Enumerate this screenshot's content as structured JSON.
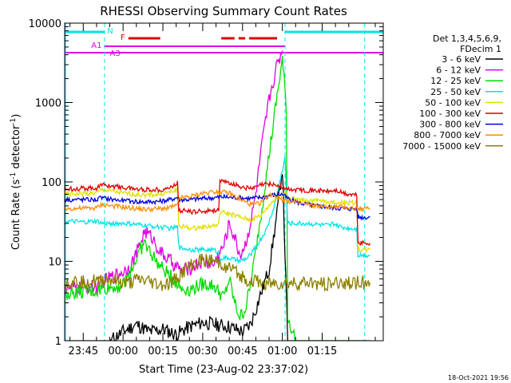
{
  "chart_data": {
    "type": "line",
    "title": "RHESSI Observing Summary Count Rates",
    "xlabel": "Start Time (23-Aug-02 23:37:02)",
    "ylabel": "Count Rate (s⁻¹ detector⁻¹)",
    "ylabel_parts": {
      "pre": "Count Rate (s",
      "sup1": "-1",
      "mid": " detector",
      "sup2": "-1",
      "post": ")"
    },
    "y_scale": "log",
    "ylim": [
      1,
      10000
    ],
    "xlim_minutes": [
      -22,
      98
    ],
    "x_tick_labels": [
      "23:45",
      "00:00",
      "00:15",
      "00:30",
      "00:45",
      "01:00",
      "01:15"
    ],
    "x_tick_minutes": [
      -15,
      0,
      15,
      30,
      45,
      60,
      75
    ],
    "y_tick_labels": [
      "1",
      "10",
      "100",
      "1000",
      "10000"
    ],
    "legend_title": [
      "Det 1,3,4,5,6,9,",
      "FDecim 1"
    ],
    "legend_placement": "right",
    "timestamp": "18-Oct-2021 19:56",
    "flags": {
      "N_label": "N",
      "A1_label": "A1",
      "A3_label": "A3",
      "F_label": "F",
      "night_color": "#00e5e5",
      "attenuator_color": "#e000e0",
      "flare_color": "#e00000",
      "night_intervals": [
        [
          -22,
          -7
        ],
        [
          61,
          98
        ]
      ],
      "attenuator_interval": [
        -22,
        98
      ],
      "flare_segments": [
        [
          2,
          14
        ],
        [
          37,
          42
        ],
        [
          43.5,
          46
        ],
        [
          47.5,
          58
        ]
      ],
      "night_markers_minutes": [
        -7,
        61,
        91
      ]
    },
    "series": [
      {
        "name": "3 - 6 keV",
        "color": "#000000",
        "x": [
          -22,
          -16,
          -14,
          -10,
          -5,
          0,
          5,
          10,
          15,
          20,
          25,
          30,
          35,
          40,
          45,
          48,
          50,
          52,
          55,
          58,
          60,
          62,
          65,
          70,
          75,
          80,
          85,
          90,
          93
        ],
        "y": [
          1,
          1,
          1,
          1,
          1,
          1.3,
          1.6,
          1.3,
          1.4,
          1.2,
          1.5,
          1.7,
          1.6,
          1.5,
          1.3,
          1.6,
          2.5,
          4,
          8,
          40,
          150,
          1,
          1,
          1,
          1,
          1,
          1,
          1,
          1
        ]
      },
      {
        "name": "6 - 12 keV",
        "color": "#e000e0",
        "x": [
          -22,
          -10,
          -8,
          0,
          3,
          6,
          8,
          11,
          14,
          18,
          22,
          26,
          30,
          34,
          38,
          40,
          42,
          44,
          46,
          48,
          50,
          52,
          55,
          58,
          60
        ],
        "y": [
          4.5,
          4.8,
          5.5,
          7.5,
          9,
          15,
          24,
          20,
          13,
          10,
          7.5,
          8.5,
          10,
          9,
          16,
          30,
          20,
          12,
          16,
          30,
          70,
          250,
          1100,
          3000,
          4500
        ]
      },
      {
        "name": "12 - 25 keV",
        "color": "#00dd00",
        "x": [
          -22,
          -10,
          -8,
          0,
          4,
          6,
          8,
          11,
          14,
          18,
          22,
          26,
          30,
          34,
          38,
          40,
          42,
          44,
          46,
          48,
          50,
          52,
          55,
          58,
          60,
          61.5,
          62,
          65,
          70,
          80,
          85,
          90,
          93
        ],
        "y": [
          4,
          4.2,
          4.5,
          5,
          9,
          13,
          17,
          12,
          8.5,
          6.5,
          4.5,
          4.5,
          5.2,
          5,
          3.5,
          6,
          3,
          2,
          2.5,
          5,
          14,
          40,
          220,
          1200,
          3500,
          900,
          2,
          1,
          1,
          1,
          1,
          1,
          1
        ]
      },
      {
        "name": "25 - 50 keV",
        "color": "#00e5e5",
        "x": [
          -22,
          -15,
          -10,
          -8,
          0,
          10,
          18,
          20.5,
          21,
          26,
          30,
          34,
          36,
          36.5,
          40,
          44,
          47,
          50,
          54,
          57,
          59,
          61,
          62,
          65,
          70,
          78,
          79,
          82,
          86,
          88,
          88.5,
          92,
          93
        ],
        "y": [
          32,
          31,
          32,
          30,
          30,
          28,
          26,
          27,
          15,
          14,
          14,
          14,
          13,
          11,
          11,
          10,
          11,
          15,
          25,
          50,
          100,
          200,
          30,
          30,
          30,
          28,
          30,
          27,
          26,
          26,
          12,
          12,
          12
        ]
      },
      {
        "name": "50 - 100 keV",
        "color": "#e0e000",
        "x": [
          -22,
          -10,
          -8,
          0,
          8,
          14,
          18,
          20.5,
          21,
          26,
          30,
          34,
          36,
          36.5,
          40,
          44,
          48,
          52,
          56,
          58,
          60,
          61.5,
          62,
          66,
          72,
          78,
          80,
          84,
          88,
          88.5,
          90,
          93
        ],
        "y": [
          70,
          72,
          80,
          72,
          68,
          70,
          75,
          80,
          28,
          26,
          27,
          28,
          29,
          42,
          40,
          36,
          33,
          38,
          55,
          65,
          70,
          75,
          62,
          60,
          58,
          56,
          55,
          55,
          55,
          14,
          14,
          14
        ]
      },
      {
        "name": "100 - 300 keV",
        "color": "#e00000",
        "x": [
          -22,
          -10,
          -8,
          0,
          8,
          14,
          18,
          20.5,
          21,
          26,
          30,
          34,
          36,
          36.5,
          40,
          44,
          48,
          50,
          52,
          56,
          58,
          60,
          61.5,
          62,
          66,
          72,
          78,
          80,
          84,
          88,
          88.5,
          90,
          93
        ],
        "y": [
          82,
          84,
          92,
          85,
          80,
          80,
          85,
          98,
          44,
          42,
          43,
          44,
          45,
          100,
          98,
          88,
          82,
          85,
          92,
          95,
          90,
          85,
          82,
          80,
          80,
          78,
          76,
          78,
          70,
          68,
          17,
          17,
          17
        ]
      },
      {
        "name": "300 - 800 keV",
        "color": "#0000dd",
        "x": [
          -22,
          -10,
          -8,
          0,
          8,
          14,
          18,
          20.5,
          21,
          26,
          30,
          34,
          36,
          36.5,
          40,
          44,
          48,
          52,
          56,
          60,
          62,
          66,
          72,
          78,
          80,
          84,
          88,
          88.5,
          90,
          93
        ],
        "y": [
          60,
          60,
          63,
          58,
          56,
          57,
          60,
          64,
          60,
          60,
          62,
          63,
          64,
          65,
          64,
          63,
          62,
          64,
          68,
          70,
          62,
          55,
          50,
          48,
          47,
          46,
          46,
          36,
          36,
          36
        ]
      },
      {
        "name": "800 - 7000 keV",
        "color": "#ff8c00",
        "x": [
          -22,
          -10,
          -8,
          0,
          8,
          14,
          18,
          20.5,
          21,
          26,
          30,
          34,
          36,
          38,
          40,
          42,
          44,
          46,
          48,
          50,
          52,
          54,
          56,
          58,
          60,
          62,
          66,
          72,
          78,
          84,
          88,
          90,
          93
        ],
        "y": [
          46,
          47,
          52,
          48,
          45,
          46,
          48,
          50,
          62,
          66,
          72,
          76,
          76,
          74,
          72,
          66,
          60,
          56,
          52,
          52,
          55,
          65,
          70,
          65,
          60,
          58,
          54,
          50,
          48,
          48,
          46,
          46,
          46
        ]
      },
      {
        "name": "7000 - 15000 keV",
        "color": "#8b8000",
        "x": [
          -22,
          -10,
          -6,
          -2,
          2,
          6,
          10,
          14,
          18,
          22,
          26,
          30,
          34,
          38,
          42,
          46,
          50,
          54,
          58,
          62,
          66,
          70,
          74,
          78,
          82,
          86,
          90,
          93
        ],
        "y": [
          5.5,
          5.6,
          6,
          5.5,
          5.2,
          5.8,
          5.5,
          5.0,
          5.2,
          7,
          9,
          10.5,
          10,
          9,
          7.5,
          6,
          5.5,
          5.2,
          5.2,
          5.3,
          5.2,
          5.4,
          5.3,
          5.2,
          5.4,
          5.3,
          5.4,
          5.4
        ]
      }
    ]
  }
}
